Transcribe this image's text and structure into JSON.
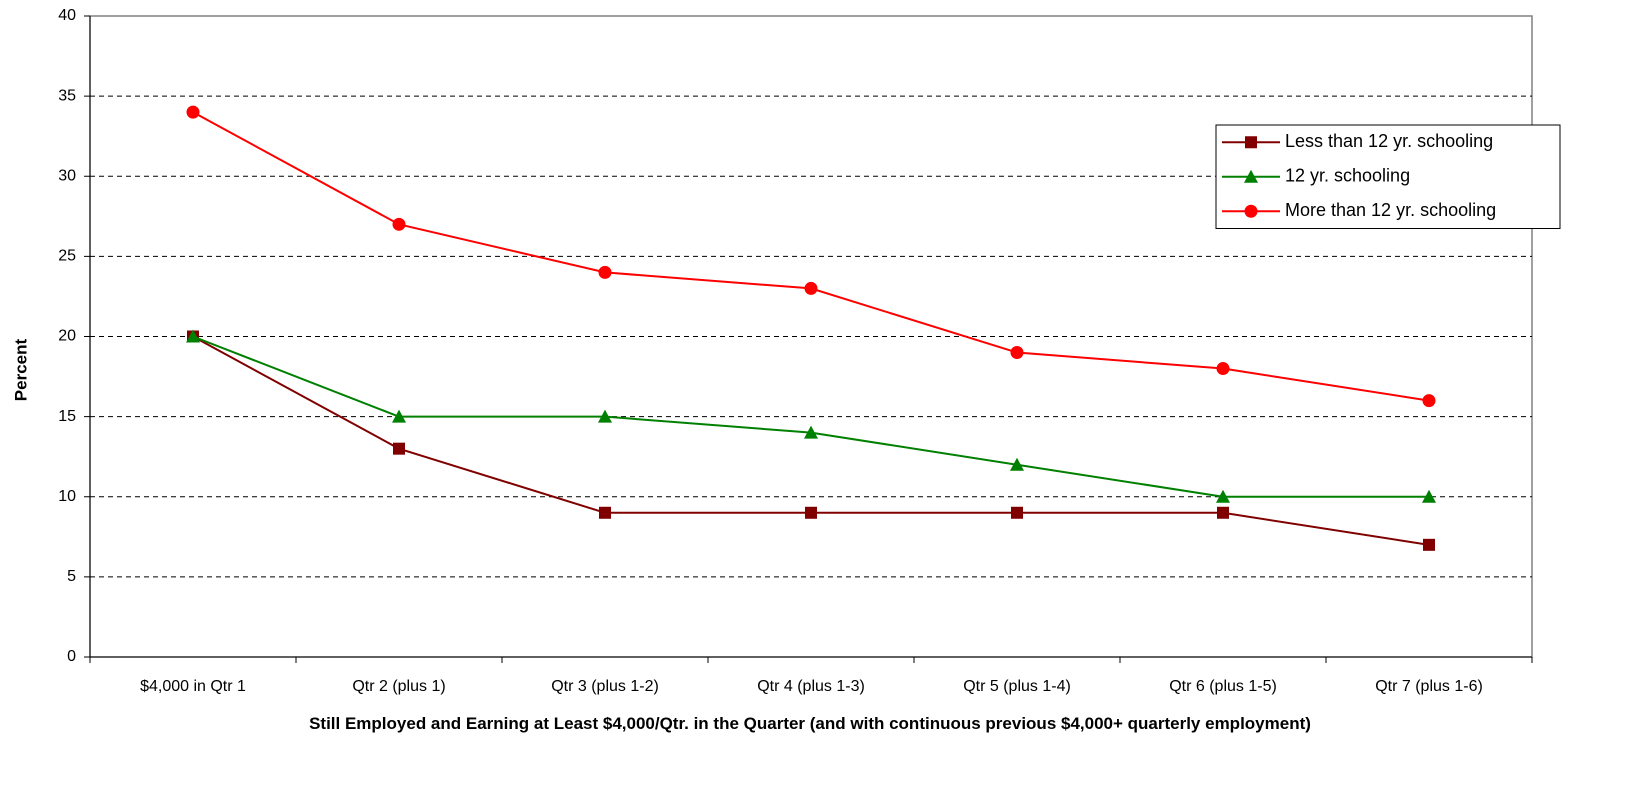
{
  "chart_data": {
    "type": "line",
    "x_label": "Still Employed and Earning at Least $4,000/Qtr. in the Quarter (and with continuous previous $4,000+ quarterly employment)",
    "y_label": "Percent",
    "categories": [
      "$4,000 in Qtr 1",
      "Qtr 2 (plus 1)",
      "Qtr 3 (plus 1-2)",
      "Qtr 4 (plus 1-3)",
      "Qtr 5 (plus 1-4)",
      "Qtr 6 (plus 1-5)",
      "Qtr 7 (plus 1-6)"
    ],
    "series": [
      {
        "name": "Less than 12 yr. schooling",
        "color": "#800000",
        "marker": "square",
        "values": [
          20,
          13,
          9,
          9,
          9,
          9,
          7
        ]
      },
      {
        "name": "12 yr. schooling",
        "color": "#008000",
        "marker": "triangle",
        "values": [
          20,
          15,
          15,
          14,
          12,
          10,
          10
        ]
      },
      {
        "name": "More than 12 yr. schooling",
        "color": "#ff0000",
        "marker": "circle",
        "values": [
          34,
          27,
          24,
          23,
          19,
          18,
          16
        ]
      }
    ],
    "ylim": [
      0,
      40
    ],
    "yticks": [
      0,
      5,
      10,
      15,
      20,
      25,
      30,
      35,
      40
    ],
    "grid": true,
    "legend": "right"
  }
}
